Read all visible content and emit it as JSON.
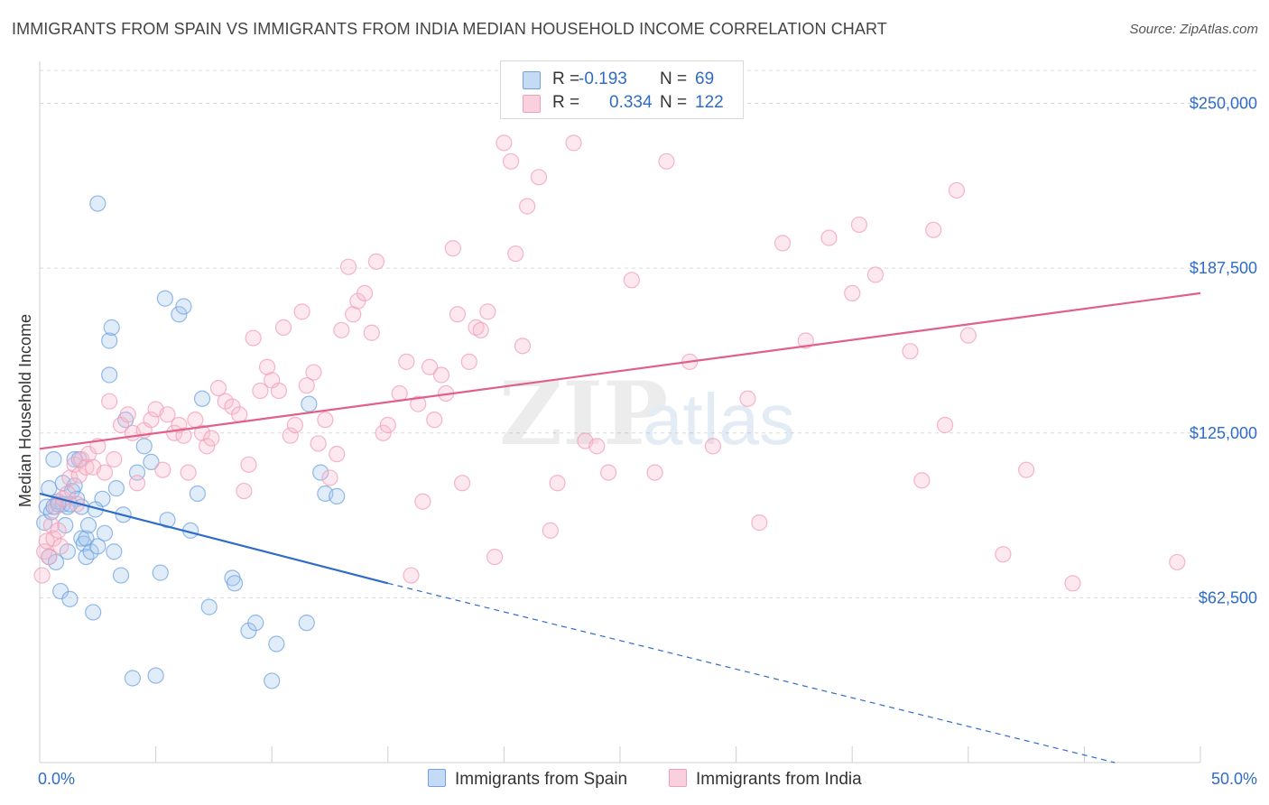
{
  "title": "IMMIGRANTS FROM SPAIN VS IMMIGRANTS FROM INDIA MEDIAN HOUSEHOLD INCOME CORRELATION CHART",
  "source": "Source: ZipAtlas.com",
  "watermark": {
    "part1": "ZIP",
    "part2": "atlas"
  },
  "legend": {
    "r_label": "R =",
    "n_label": "N =",
    "rows": [
      {
        "r": "-0.193",
        "n": "69"
      },
      {
        "r": "0.334",
        "n": "122"
      }
    ]
  },
  "bottom_legend": [
    "Immigrants from Spain",
    "Immigrants from India"
  ],
  "chart_data": {
    "type": "scatter",
    "title": "IMMIGRANTS FROM SPAIN VS IMMIGRANTS FROM INDIA MEDIAN HOUSEHOLD INCOME CORRELATION CHART",
    "xlabel": "",
    "ylabel": "Median Household Income",
    "xlim": [
      0,
      50
    ],
    "ylim": [
      0,
      262500
    ],
    "x_tick_labels": [
      "0.0%",
      "50.0%"
    ],
    "y_ticks": [
      62500,
      125000,
      187500,
      250000
    ],
    "y_tick_labels": [
      "$62,500",
      "$125,000",
      "$187,500",
      "$250,000"
    ],
    "grid": "horizontal dashed",
    "legend_position": "top-center",
    "colors": {
      "spain": "#6fa3e0",
      "spain_line": "#2f6cc7",
      "india": "#f29db8",
      "india_line": "#e0608a",
      "tick_text": "#2f6cc7"
    },
    "series": [
      {
        "name": "Immigrants from Spain",
        "color": "#6fa3e0",
        "trend": {
          "x": [
            0.0,
            15.0
          ],
          "y": [
            102000,
            68000
          ],
          "dashed_to": [
            50.0,
            -8000
          ]
        },
        "x": [
          0.2,
          0.3,
          0.4,
          0.4,
          0.5,
          0.6,
          0.6,
          0.7,
          0.8,
          0.9,
          1.0,
          1.0,
          1.1,
          1.2,
          1.2,
          1.3,
          1.4,
          1.5,
          1.5,
          1.6,
          1.7,
          1.8,
          1.8,
          1.9,
          2.0,
          2.0,
          2.1,
          2.2,
          2.3,
          2.5,
          2.5,
          2.8,
          3.0,
          3.0,
          3.1,
          3.2,
          3.3,
          3.5,
          3.7,
          4.0,
          4.2,
          4.5,
          4.8,
          5.0,
          5.2,
          5.4,
          5.5,
          6.0,
          6.2,
          6.5,
          6.8,
          7.0,
          7.3,
          8.3,
          8.4,
          9.0,
          9.3,
          10.0,
          10.2,
          11.5,
          11.6,
          12.1,
          12.3,
          12.8,
          2.7,
          1.3,
          0.8,
          2.4,
          3.6
        ],
        "y": [
          91000,
          97000,
          104000,
          78000,
          95000,
          97000,
          115000,
          76000,
          99000,
          65000,
          106000,
          98000,
          90000,
          80000,
          97000,
          62000,
          103000,
          105000,
          115000,
          100000,
          115000,
          85000,
          97000,
          83000,
          85000,
          78000,
          90000,
          80000,
          57000,
          212000,
          82000,
          87000,
          160000,
          147000,
          165000,
          80000,
          104000,
          71000,
          130000,
          32000,
          110000,
          120000,
          114000,
          33000,
          72000,
          176000,
          92000,
          170000,
          173000,
          88000,
          102000,
          138000,
          59000,
          70000,
          68000,
          50000,
          53000,
          31000,
          45000,
          53000,
          136000,
          110000,
          102000,
          101000,
          100000,
          98000,
          98000,
          96000,
          94000
        ]
      },
      {
        "name": "Immigrants from India",
        "color": "#f29db8",
        "trend": {
          "x": [
            0.0,
            50.0
          ],
          "y": [
            119000,
            178000
          ]
        },
        "x": [
          0.1,
          0.2,
          0.3,
          0.4,
          0.5,
          0.6,
          0.7,
          0.8,
          0.9,
          1.0,
          1.2,
          1.3,
          1.5,
          1.6,
          1.7,
          1.8,
          2.0,
          2.1,
          2.3,
          2.5,
          2.8,
          3.0,
          3.2,
          3.5,
          3.8,
          4.0,
          4.2,
          4.5,
          4.8,
          5.0,
          5.3,
          5.5,
          5.8,
          6.0,
          6.2,
          6.4,
          6.7,
          7.0,
          7.2,
          7.4,
          7.7,
          8.0,
          8.3,
          8.6,
          8.8,
          9.0,
          9.2,
          9.5,
          9.8,
          10.0,
          10.3,
          10.5,
          10.8,
          11.0,
          11.3,
          11.5,
          11.8,
          12.0,
          12.3,
          12.5,
          12.8,
          13.0,
          13.3,
          13.5,
          13.7,
          14.0,
          14.3,
          14.5,
          14.8,
          15.0,
          15.5,
          15.8,
          16.0,
          16.3,
          16.5,
          16.8,
          17.0,
          17.3,
          17.5,
          17.8,
          18.0,
          18.2,
          18.5,
          18.8,
          19.0,
          19.3,
          19.6,
          20.0,
          20.3,
          20.5,
          20.8,
          21.0,
          21.5,
          22.0,
          22.3,
          23.0,
          23.5,
          24.0,
          24.5,
          25.5,
          26.5,
          27.0,
          28.0,
          29.0,
          30.5,
          31.0,
          32.0,
          33.0,
          34.0,
          35.0,
          35.3,
          36.0,
          37.5,
          38.0,
          38.5,
          39.5,
          40.0,
          42.5,
          44.5,
          41.5,
          49.0,
          39.0
        ],
        "y": [
          71000,
          80000,
          84000,
          78000,
          90000,
          85000,
          97000,
          88000,
          82000,
          100000,
          102000,
          108000,
          113000,
          98000,
          109000,
          115000,
          112000,
          117000,
          112000,
          120000,
          110000,
          137000,
          115000,
          128000,
          132000,
          125000,
          106000,
          126000,
          130000,
          134000,
          111000,
          132000,
          125000,
          128000,
          124000,
          110000,
          130000,
          125000,
          120000,
          123000,
          142000,
          137000,
          135000,
          132000,
          103000,
          113000,
          161000,
          141000,
          150000,
          145000,
          141000,
          165000,
          124000,
          128000,
          171000,
          143000,
          148000,
          121000,
          130000,
          108000,
          117000,
          164000,
          188000,
          170000,
          175000,
          178000,
          163000,
          190000,
          125000,
          128000,
          140000,
          152000,
          71000,
          136000,
          99000,
          150000,
          130000,
          147000,
          140000,
          195000,
          170000,
          106000,
          152000,
          165000,
          164000,
          171000,
          78000,
          235000,
          228000,
          193000,
          158000,
          211000,
          222000,
          88000,
          106000,
          235000,
          122000,
          120000,
          110000,
          183000,
          110000,
          228000,
          152000,
          120000,
          138000,
          91000,
          197000,
          160000,
          199000,
          178000,
          204000,
          185000,
          156000,
          107000,
          202000,
          217000,
          162000,
          111000,
          68000,
          79000,
          76000,
          128000
        ]
      }
    ]
  }
}
